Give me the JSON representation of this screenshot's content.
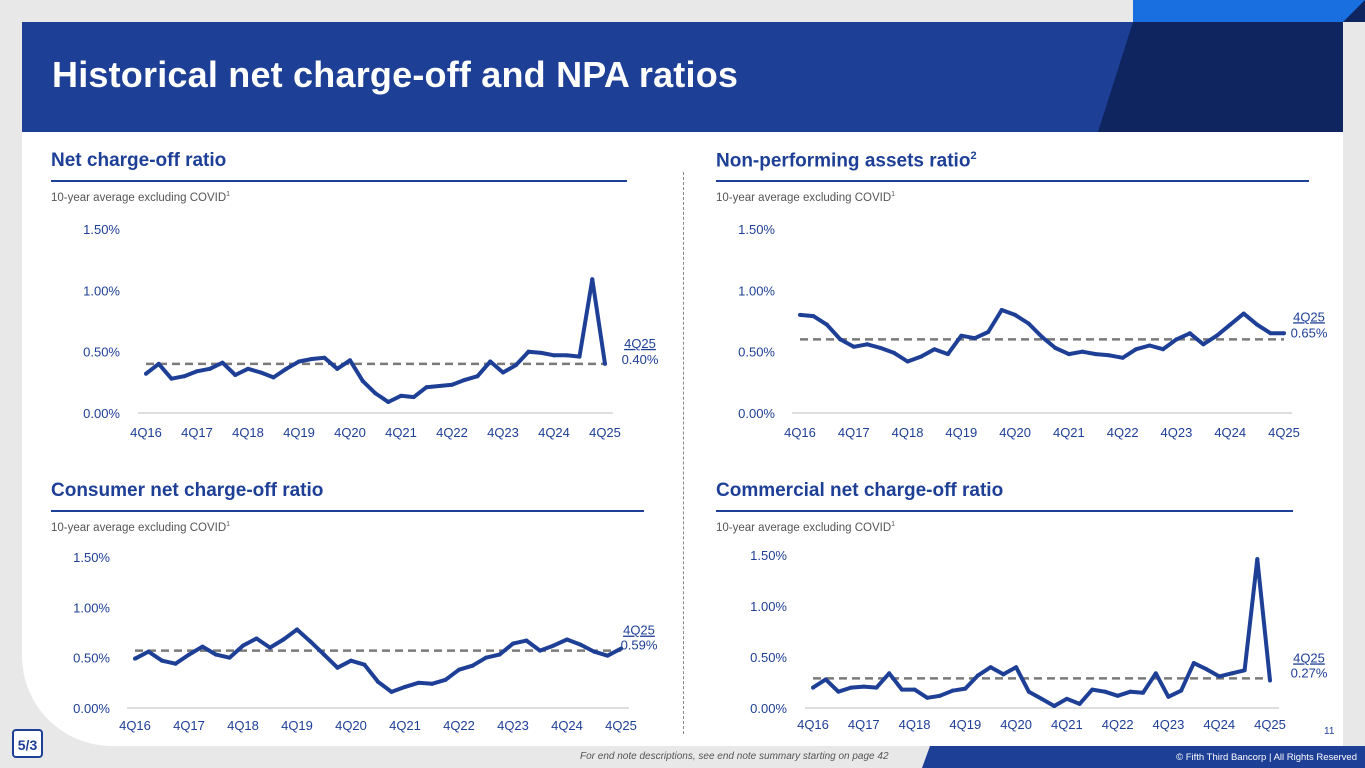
{
  "page": {
    "title": "Historical net charge-off and NPA ratios",
    "footnote": "For end note descriptions, see end note summary starting on page 42",
    "copyright": "© Fifth Third Bancorp | All Rights Reserved",
    "page_number": "11",
    "logo_text": "5/3"
  },
  "colors": {
    "brand": "#1e3f96",
    "brand_dark": "#0f2560",
    "series": "#1e3f96",
    "average": "#7a7a7a"
  },
  "chart_data": [
    {
      "type": "line",
      "title": "Net charge-off ratio",
      "title_sup": "",
      "note": "10-year average excluding COVID",
      "note_sup": "1",
      "ylim": [
        0,
        1.5
      ],
      "yticks": [
        "0.00%",
        "0.50%",
        "1.00%",
        "1.50%"
      ],
      "xticks": [
        "4Q16",
        "4Q17",
        "4Q18",
        "4Q19",
        "4Q20",
        "4Q21",
        "4Q22",
        "4Q23",
        "4Q24",
        "4Q25"
      ],
      "values": [
        0.32,
        0.4,
        0.28,
        0.3,
        0.34,
        0.36,
        0.41,
        0.31,
        0.36,
        0.33,
        0.29,
        0.36,
        0.42,
        0.44,
        0.45,
        0.36,
        0.43,
        0.26,
        0.16,
        0.09,
        0.14,
        0.13,
        0.21,
        0.22,
        0.23,
        0.27,
        0.3,
        0.42,
        0.33,
        0.39,
        0.5,
        0.49,
        0.47,
        0.47,
        0.46,
        1.09,
        0.4
      ],
      "average": 0.4,
      "last_label": "4Q25",
      "last_value": "0.40%"
    },
    {
      "type": "line",
      "title": "Non-performing assets ratio",
      "title_sup": "2",
      "note": "10-year average excluding COVID",
      "note_sup": "1",
      "ylim": [
        0,
        1.5
      ],
      "yticks": [
        "0.00%",
        "0.50%",
        "1.00%",
        "1.50%"
      ],
      "xticks": [
        "4Q16",
        "4Q17",
        "4Q18",
        "4Q19",
        "4Q20",
        "4Q21",
        "4Q22",
        "4Q23",
        "4Q24",
        "4Q25"
      ],
      "values": [
        0.8,
        0.79,
        0.72,
        0.6,
        0.54,
        0.56,
        0.53,
        0.49,
        0.42,
        0.46,
        0.52,
        0.48,
        0.63,
        0.61,
        0.66,
        0.84,
        0.8,
        0.73,
        0.62,
        0.53,
        0.48,
        0.5,
        0.48,
        0.47,
        0.45,
        0.52,
        0.55,
        0.52,
        0.6,
        0.65,
        0.56,
        0.63,
        0.72,
        0.81,
        0.72,
        0.65,
        0.65
      ],
      "average": 0.6,
      "last_label": "4Q25",
      "last_value": "0.65%"
    },
    {
      "type": "line",
      "title": "Consumer net charge-off ratio",
      "title_sup": "",
      "note": "10-year average excluding COVID",
      "note_sup": "1",
      "ylim": [
        0,
        1.5
      ],
      "yticks": [
        "0.00%",
        "0.50%",
        "1.00%",
        "1.50%"
      ],
      "xticks": [
        "4Q16",
        "4Q17",
        "4Q18",
        "4Q19",
        "4Q20",
        "4Q21",
        "4Q22",
        "4Q23",
        "4Q24",
        "4Q25"
      ],
      "values": [
        0.49,
        0.56,
        0.47,
        0.44,
        0.53,
        0.61,
        0.53,
        0.5,
        0.62,
        0.69,
        0.6,
        0.68,
        0.78,
        0.66,
        0.53,
        0.4,
        0.47,
        0.43,
        0.26,
        0.16,
        0.21,
        0.25,
        0.24,
        0.28,
        0.38,
        0.42,
        0.5,
        0.53,
        0.64,
        0.67,
        0.57,
        0.62,
        0.68,
        0.63,
        0.56,
        0.52,
        0.59
      ],
      "average": 0.57,
      "last_label": "4Q25",
      "last_value": "0.59%"
    },
    {
      "type": "line",
      "title": "Commercial net charge-off ratio",
      "title_sup": "",
      "note": "10-year average excluding COVID",
      "note_sup": "1",
      "ylim": [
        0,
        1.5
      ],
      "yticks": [
        "0.00%",
        "0.50%",
        "1.00%",
        "1.50%"
      ],
      "xticks": [
        "4Q16",
        "4Q17",
        "4Q18",
        "4Q19",
        "4Q20",
        "4Q21",
        "4Q22",
        "4Q23",
        "4Q24",
        "4Q25"
      ],
      "values": [
        0.2,
        0.28,
        0.16,
        0.2,
        0.21,
        0.2,
        0.34,
        0.18,
        0.18,
        0.1,
        0.12,
        0.17,
        0.19,
        0.32,
        0.4,
        0.33,
        0.4,
        0.16,
        0.09,
        0.02,
        0.09,
        0.04,
        0.18,
        0.16,
        0.12,
        0.16,
        0.15,
        0.34,
        0.11,
        0.17,
        0.44,
        0.38,
        0.31,
        0.34,
        0.37,
        1.46,
        0.27
      ],
      "average": 0.29,
      "last_label": "4Q25",
      "last_value": "0.27%"
    }
  ]
}
